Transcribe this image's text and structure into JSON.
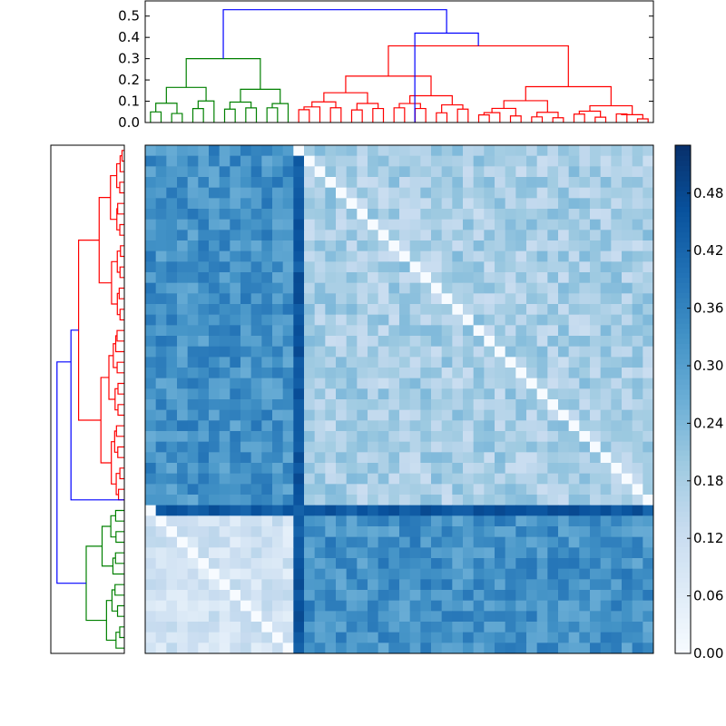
{
  "chart_data": {
    "type": "heatmap",
    "title": "",
    "n": 48,
    "top_dendrogram": {
      "ylim": [
        0,
        0.55
      ],
      "ytick_labels": [
        "0.0",
        "0.1",
        "0.2",
        "0.3",
        "0.4",
        "0.5"
      ],
      "ytick_values": [
        0,
        0.1,
        0.2,
        0.3,
        0.4,
        0.5
      ],
      "root_height": 0.53,
      "second_merge_height": 0.42,
      "clusters": [
        {
          "name": "cluster-green",
          "color": "#008000",
          "leaves": 14,
          "height": 0.3
        },
        {
          "name": "cluster-red",
          "color": "#ff0000",
          "leaves": 34,
          "height": 0.36
        }
      ],
      "link_color": "#0000ff"
    },
    "left_dendrogram": {
      "clusters": [
        {
          "name": "cluster-red",
          "color": "#ff0000",
          "leaves": 34
        },
        {
          "name": "cluster-green",
          "color": "#008000",
          "leaves": 14
        }
      ],
      "link_color": "#0000ff"
    },
    "colorbar": {
      "min": 0.0,
      "max": 0.53,
      "tick_labels": [
        "0.00",
        "0.06",
        "0.12",
        "0.18",
        "0.24",
        "0.30",
        "0.36",
        "0.42",
        "0.48"
      ],
      "tick_values": [
        0.0,
        0.06,
        0.12,
        0.18,
        0.24,
        0.3,
        0.36,
        0.42,
        0.48
      ],
      "colormap": "Blues"
    },
    "matrix_summary": {
      "diagonal": 0.0,
      "within_red_cluster": 0.18,
      "within_green_cluster": 0.1,
      "between_clusters": 0.33,
      "dark_row_col_value": 0.48
    }
  }
}
